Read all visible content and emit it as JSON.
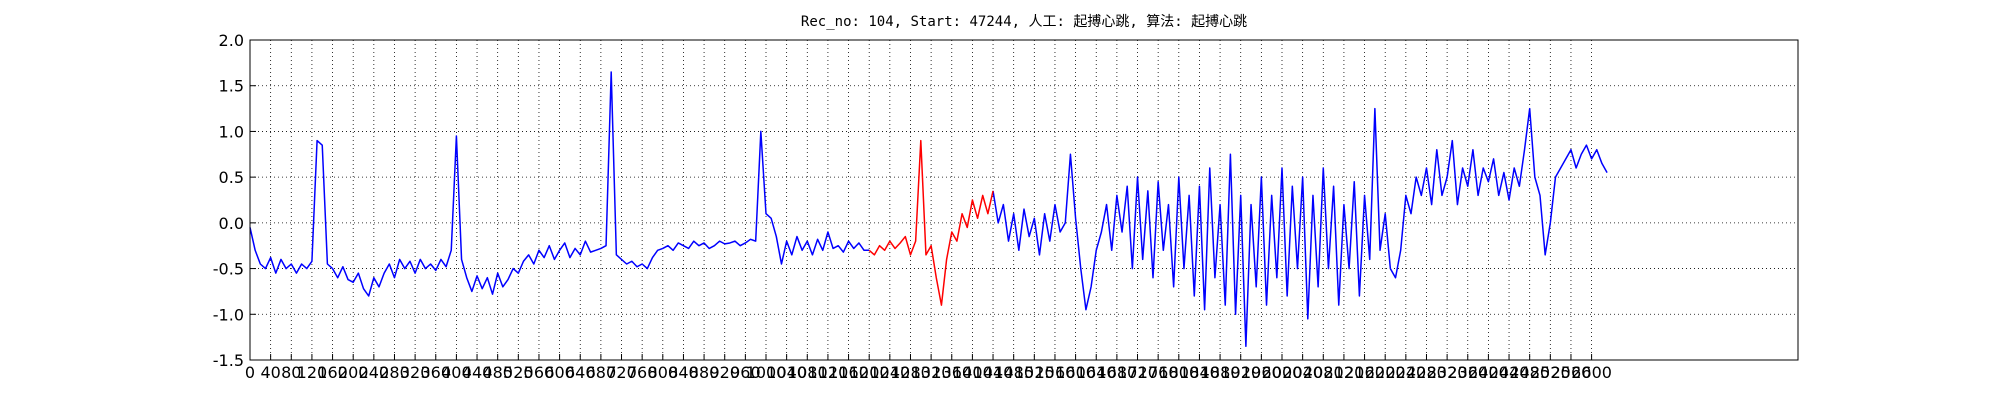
{
  "chart_data": {
    "type": "line",
    "title": "Rec_no: 104, Start: 47244, 人工: 起搏心跳, 算法: 起搏心跳",
    "xlim": [
      0,
      3000
    ],
    "ylim": [
      -1.5,
      2.0
    ],
    "grid": true,
    "xticks": [
      0,
      40,
      80,
      120,
      160,
      200,
      240,
      280,
      320,
      360,
      400,
      440,
      480,
      520,
      560,
      600,
      640,
      680,
      720,
      760,
      800,
      840,
      880,
      920,
      960,
      1000,
      1040,
      1080,
      1120,
      1160,
      1200,
      1240,
      1280,
      1320,
      1360,
      1400,
      1440,
      1480,
      1520,
      1560,
      1600,
      1640,
      1680,
      1720,
      1760,
      1800,
      1840,
      1880,
      1920,
      1960,
      2000,
      2040,
      2080,
      2120,
      2160,
      2200,
      2240,
      2280,
      2320,
      2360,
      2400,
      2440,
      2480,
      2520,
      2560,
      2600
    ],
    "yticks": [
      {
        "value": 2,
        "label": "2.0"
      },
      1.5,
      {
        "value": 1,
        "label": "1.0"
      },
      0.5,
      {
        "value": 0,
        "label": "0.0"
      },
      -0.5,
      {
        "value": -1,
        "label": "-1.0"
      },
      -1.5
    ],
    "series": [
      {
        "color": "#0000ff",
        "x": [
          0,
          10,
          20,
          30,
          40,
          50,
          60,
          70,
          80,
          90,
          100,
          110,
          120,
          130,
          140,
          150,
          160,
          170,
          180,
          190,
          200,
          210,
          220,
          230,
          240,
          250,
          260,
          270,
          280,
          290,
          300,
          310,
          320,
          330,
          340,
          350,
          360,
          370,
          380,
          390,
          400,
          410,
          420,
          430,
          440,
          450,
          460,
          470,
          480,
          490,
          500,
          510,
          520,
          530,
          540,
          550,
          560,
          570,
          580,
          590,
          600,
          610,
          620,
          630,
          640,
          650,
          660,
          670,
          680,
          690,
          700,
          710,
          720,
          730,
          740,
          750,
          760,
          770,
          780,
          790,
          800,
          810,
          820,
          830,
          840,
          850,
          860,
          870,
          880,
          890,
          900,
          910,
          920,
          930,
          940,
          950,
          960,
          970,
          980,
          990,
          1000,
          1010,
          1020,
          1030,
          1040,
          1050,
          1060,
          1070,
          1080,
          1090,
          1100,
          1110,
          1120,
          1130,
          1140,
          1150,
          1160,
          1170,
          1180,
          1190,
          1200,
          1210,
          1220,
          1230,
          1240,
          1250,
          1260,
          1270,
          1280,
          1290,
          1300,
          1310,
          1320,
          1330,
          1340,
          1350,
          1360,
          1370,
          1380,
          1390,
          1400,
          1410,
          1420,
          1430,
          1440,
          1450,
          1460,
          1470,
          1480,
          1490,
          1500,
          1510,
          1520,
          1530,
          1540,
          1550,
          1560,
          1570,
          1580,
          1590,
          1600,
          1610,
          1620,
          1630,
          1640,
          1650,
          1660,
          1670,
          1680,
          1690,
          1700,
          1710,
          1720,
          1730,
          1740,
          1750,
          1760,
          1770,
          1780,
          1790,
          1800,
          1810,
          1820,
          1830,
          1840,
          1850,
          1860,
          1870,
          1880,
          1890,
          1900,
          1910,
          1920,
          1930,
          1940,
          1950,
          1960,
          1970,
          1980,
          1990,
          2000,
          2010,
          2020,
          2030,
          2040,
          2050,
          2060,
          2070,
          2080,
          2090,
          2100,
          2110,
          2120,
          2130,
          2140,
          2150,
          2160,
          2170,
          2180,
          2190,
          2200,
          2210,
          2220,
          2230,
          2240,
          2250,
          2260,
          2270,
          2280,
          2290,
          2300,
          2310,
          2320,
          2330,
          2340,
          2350,
          2360,
          2370,
          2380,
          2390,
          2400,
          2410,
          2420,
          2430,
          2440,
          2450,
          2460,
          2470,
          2480,
          2490,
          2500,
          2510,
          2520,
          2530,
          2540,
          2550,
          2560,
          2570,
          2580,
          2590,
          2600,
          2610,
          2620,
          2630
        ],
        "values": [
          -0.05,
          -0.3,
          -0.45,
          -0.5,
          -0.38,
          -0.55,
          -0.4,
          -0.5,
          -0.45,
          -0.55,
          -0.45,
          -0.5,
          -0.42,
          0.9,
          0.85,
          -0.45,
          -0.5,
          -0.6,
          -0.48,
          -0.62,
          -0.65,
          -0.55,
          -0.72,
          -0.8,
          -0.6,
          -0.7,
          -0.55,
          -0.45,
          -0.6,
          -0.4,
          -0.5,
          -0.42,
          -0.55,
          -0.4,
          -0.5,
          -0.45,
          -0.52,
          -0.4,
          -0.48,
          -0.3,
          0.95,
          -0.4,
          -0.6,
          -0.75,
          -0.58,
          -0.72,
          -0.6,
          -0.78,
          -0.55,
          -0.7,
          -0.62,
          -0.5,
          -0.55,
          -0.42,
          -0.35,
          -0.45,
          -0.3,
          -0.38,
          -0.25,
          -0.4,
          -0.3,
          -0.22,
          -0.38,
          -0.28,
          -0.35,
          -0.2,
          -0.32,
          -0.3,
          -0.28,
          -0.25,
          1.65,
          -0.35,
          -0.4,
          -0.45,
          -0.42,
          -0.48,
          -0.45,
          -0.5,
          -0.38,
          -0.3,
          -0.28,
          -0.25,
          -0.3,
          -0.22,
          -0.25,
          -0.28,
          -0.2,
          -0.25,
          -0.22,
          -0.28,
          -0.25,
          -0.2,
          -0.23,
          -0.22,
          -0.2,
          -0.25,
          -0.22,
          -0.18,
          -0.2,
          1.0,
          0.1,
          0.05,
          -0.15,
          -0.45,
          -0.2,
          -0.35,
          -0.15,
          -0.3,
          -0.2,
          -0.35,
          -0.18,
          -0.3,
          -0.1,
          -0.28,
          -0.25,
          -0.32,
          -0.2,
          -0.28,
          -0.22,
          -0.3,
          -0.3,
          null,
          null,
          null,
          null,
          null,
          null,
          null,
          null,
          null,
          null,
          null,
          null,
          null,
          null,
          null,
          null,
          null,
          null,
          null,
          null,
          null,
          null,
          null,
          0.35,
          0.0,
          0.2,
          -0.2,
          0.1,
          -0.3,
          0.15,
          -0.15,
          0.05,
          -0.35,
          0.1,
          -0.2,
          0.2,
          -0.1,
          0.0,
          0.75,
          0.05,
          -0.5,
          -0.95,
          -0.7,
          -0.3,
          -0.1,
          0.2,
          -0.3,
          0.3,
          -0.1,
          0.4,
          -0.5,
          0.5,
          -0.4,
          0.35,
          -0.6,
          0.45,
          -0.3,
          0.2,
          -0.7,
          0.5,
          -0.5,
          0.3,
          -0.8,
          0.4,
          -0.95,
          0.6,
          -0.6,
          0.2,
          -0.9,
          0.75,
          -1.0,
          0.3,
          -1.35,
          0.2,
          -0.7,
          0.5,
          -0.9,
          0.3,
          -0.6,
          0.6,
          -0.8,
          0.4,
          -0.5,
          0.5,
          -1.05,
          0.3,
          -0.7,
          0.6,
          -0.5,
          0.4,
          -0.9,
          0.2,
          -0.5,
          0.45,
          -0.8,
          0.3,
          -0.4,
          1.25,
          -0.3,
          0.1,
          -0.5,
          -0.6,
          -0.3,
          0.3,
          0.1,
          0.5,
          0.3,
          0.6,
          0.2,
          0.8,
          0.3,
          0.5,
          0.9,
          0.2,
          0.6,
          0.4,
          0.8,
          0.3,
          0.6,
          0.45,
          0.7,
          0.3,
          0.55,
          0.25,
          0.6,
          0.4,
          0.8,
          1.25,
          0.5,
          0.3,
          -0.35,
          0.0,
          0.5,
          0.6,
          0.7,
          0.8,
          0.6,
          0.75,
          0.85,
          0.7,
          0.8,
          0.65,
          0.55
        ]
      },
      {
        "color": "#ff0000",
        "x": [
          1200,
          1210,
          1220,
          1230,
          1240,
          1250,
          1260,
          1270,
          1280,
          1290,
          1300,
          1310,
          1320,
          1330,
          1340,
          1350,
          1360,
          1370,
          1380,
          1390,
          1400,
          1410,
          1420,
          1430,
          1440
        ],
        "values": [
          -0.3,
          -0.35,
          -0.25,
          -0.3,
          -0.2,
          -0.28,
          -0.22,
          -0.15,
          -0.35,
          -0.2,
          0.9,
          -0.35,
          -0.25,
          -0.6,
          -0.9,
          -0.4,
          -0.1,
          -0.2,
          0.1,
          -0.05,
          0.25,
          0.05,
          0.3,
          0.1,
          0.35
        ]
      }
    ]
  }
}
